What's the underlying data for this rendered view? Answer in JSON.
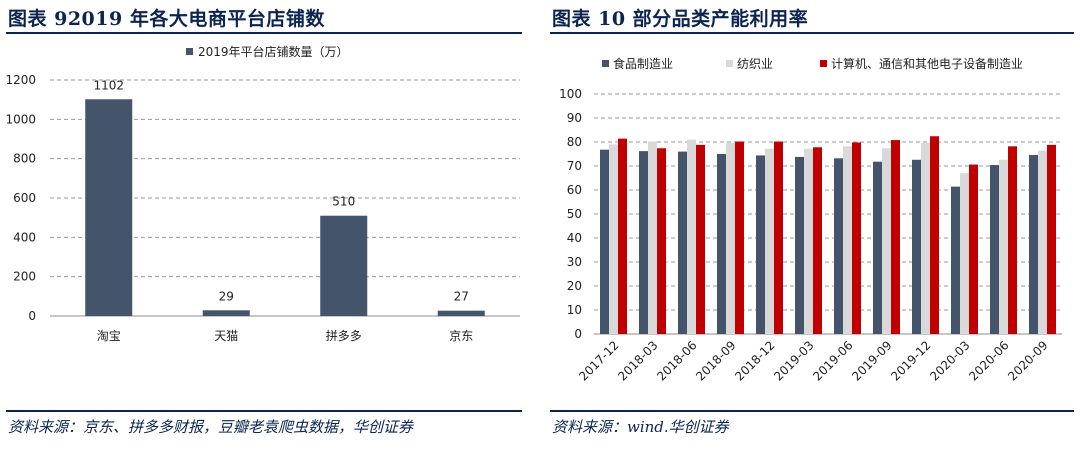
{
  "left_panel": {
    "title": "图表 92019 年各大电商平台店铺数",
    "source": "资料来源：京东、拼多多财报，豆瓣老袁爬虫数据，华创证券"
  },
  "right_panel": {
    "title": "图表 10 部分品类产能利用率",
    "source": "资料来源：wind.华创证券"
  },
  "colors": {
    "navy": "#44546a",
    "light": "#d9d9d9",
    "red": "#c00000",
    "heading": "#0b2452"
  },
  "chart_data": [
    {
      "type": "bar",
      "title": "",
      "legend": [
        "2019年平台店铺数量（万）"
      ],
      "legend_position": "top",
      "categories": [
        "淘宝",
        "天猫",
        "拼多多",
        "京东"
      ],
      "series": [
        {
          "name": "2019年平台店铺数量（万）",
          "values": [
            1102,
            29,
            510,
            27
          ]
        }
      ],
      "data_labels": [
        "1102",
        "29",
        "510",
        "27"
      ],
      "ylim": [
        0,
        1200
      ],
      "yticks": [
        "0",
        "200",
        "400",
        "600",
        "800",
        "1000",
        "1200"
      ],
      "grid": true
    },
    {
      "type": "bar",
      "title": "",
      "legend_position": "top",
      "categories": [
        "2017-12",
        "2018-03",
        "2018-06",
        "2018-09",
        "2018-12",
        "2019-03",
        "2019-06",
        "2019-09",
        "2019-12",
        "2020-03",
        "2020-06",
        "2020-09"
      ],
      "series": [
        {
          "name": "食品制造业",
          "values": [
            76.8,
            76.2,
            76.0,
            75.0,
            74.4,
            73.8,
            73.2,
            71.8,
            72.6,
            61.4,
            70.4,
            74.6
          ]
        },
        {
          "name": "纺织业",
          "values": [
            79.0,
            80.2,
            81.0,
            79.6,
            77.2,
            77.2,
            78.2,
            77.4,
            79.6,
            67.0,
            72.6,
            76.4
          ]
        },
        {
          "name": "计算机、通信和其他电子设备制造业",
          "values": [
            81.4,
            77.4,
            78.8,
            80.2,
            80.2,
            77.8,
            79.8,
            80.8,
            82.4,
            70.6,
            78.2,
            78.8
          ]
        }
      ],
      "ylim": [
        0,
        100
      ],
      "yticks": [
        "0",
        "10",
        "20",
        "30",
        "40",
        "50",
        "60",
        "70",
        "80",
        "90",
        "100"
      ],
      "grid": true
    }
  ]
}
